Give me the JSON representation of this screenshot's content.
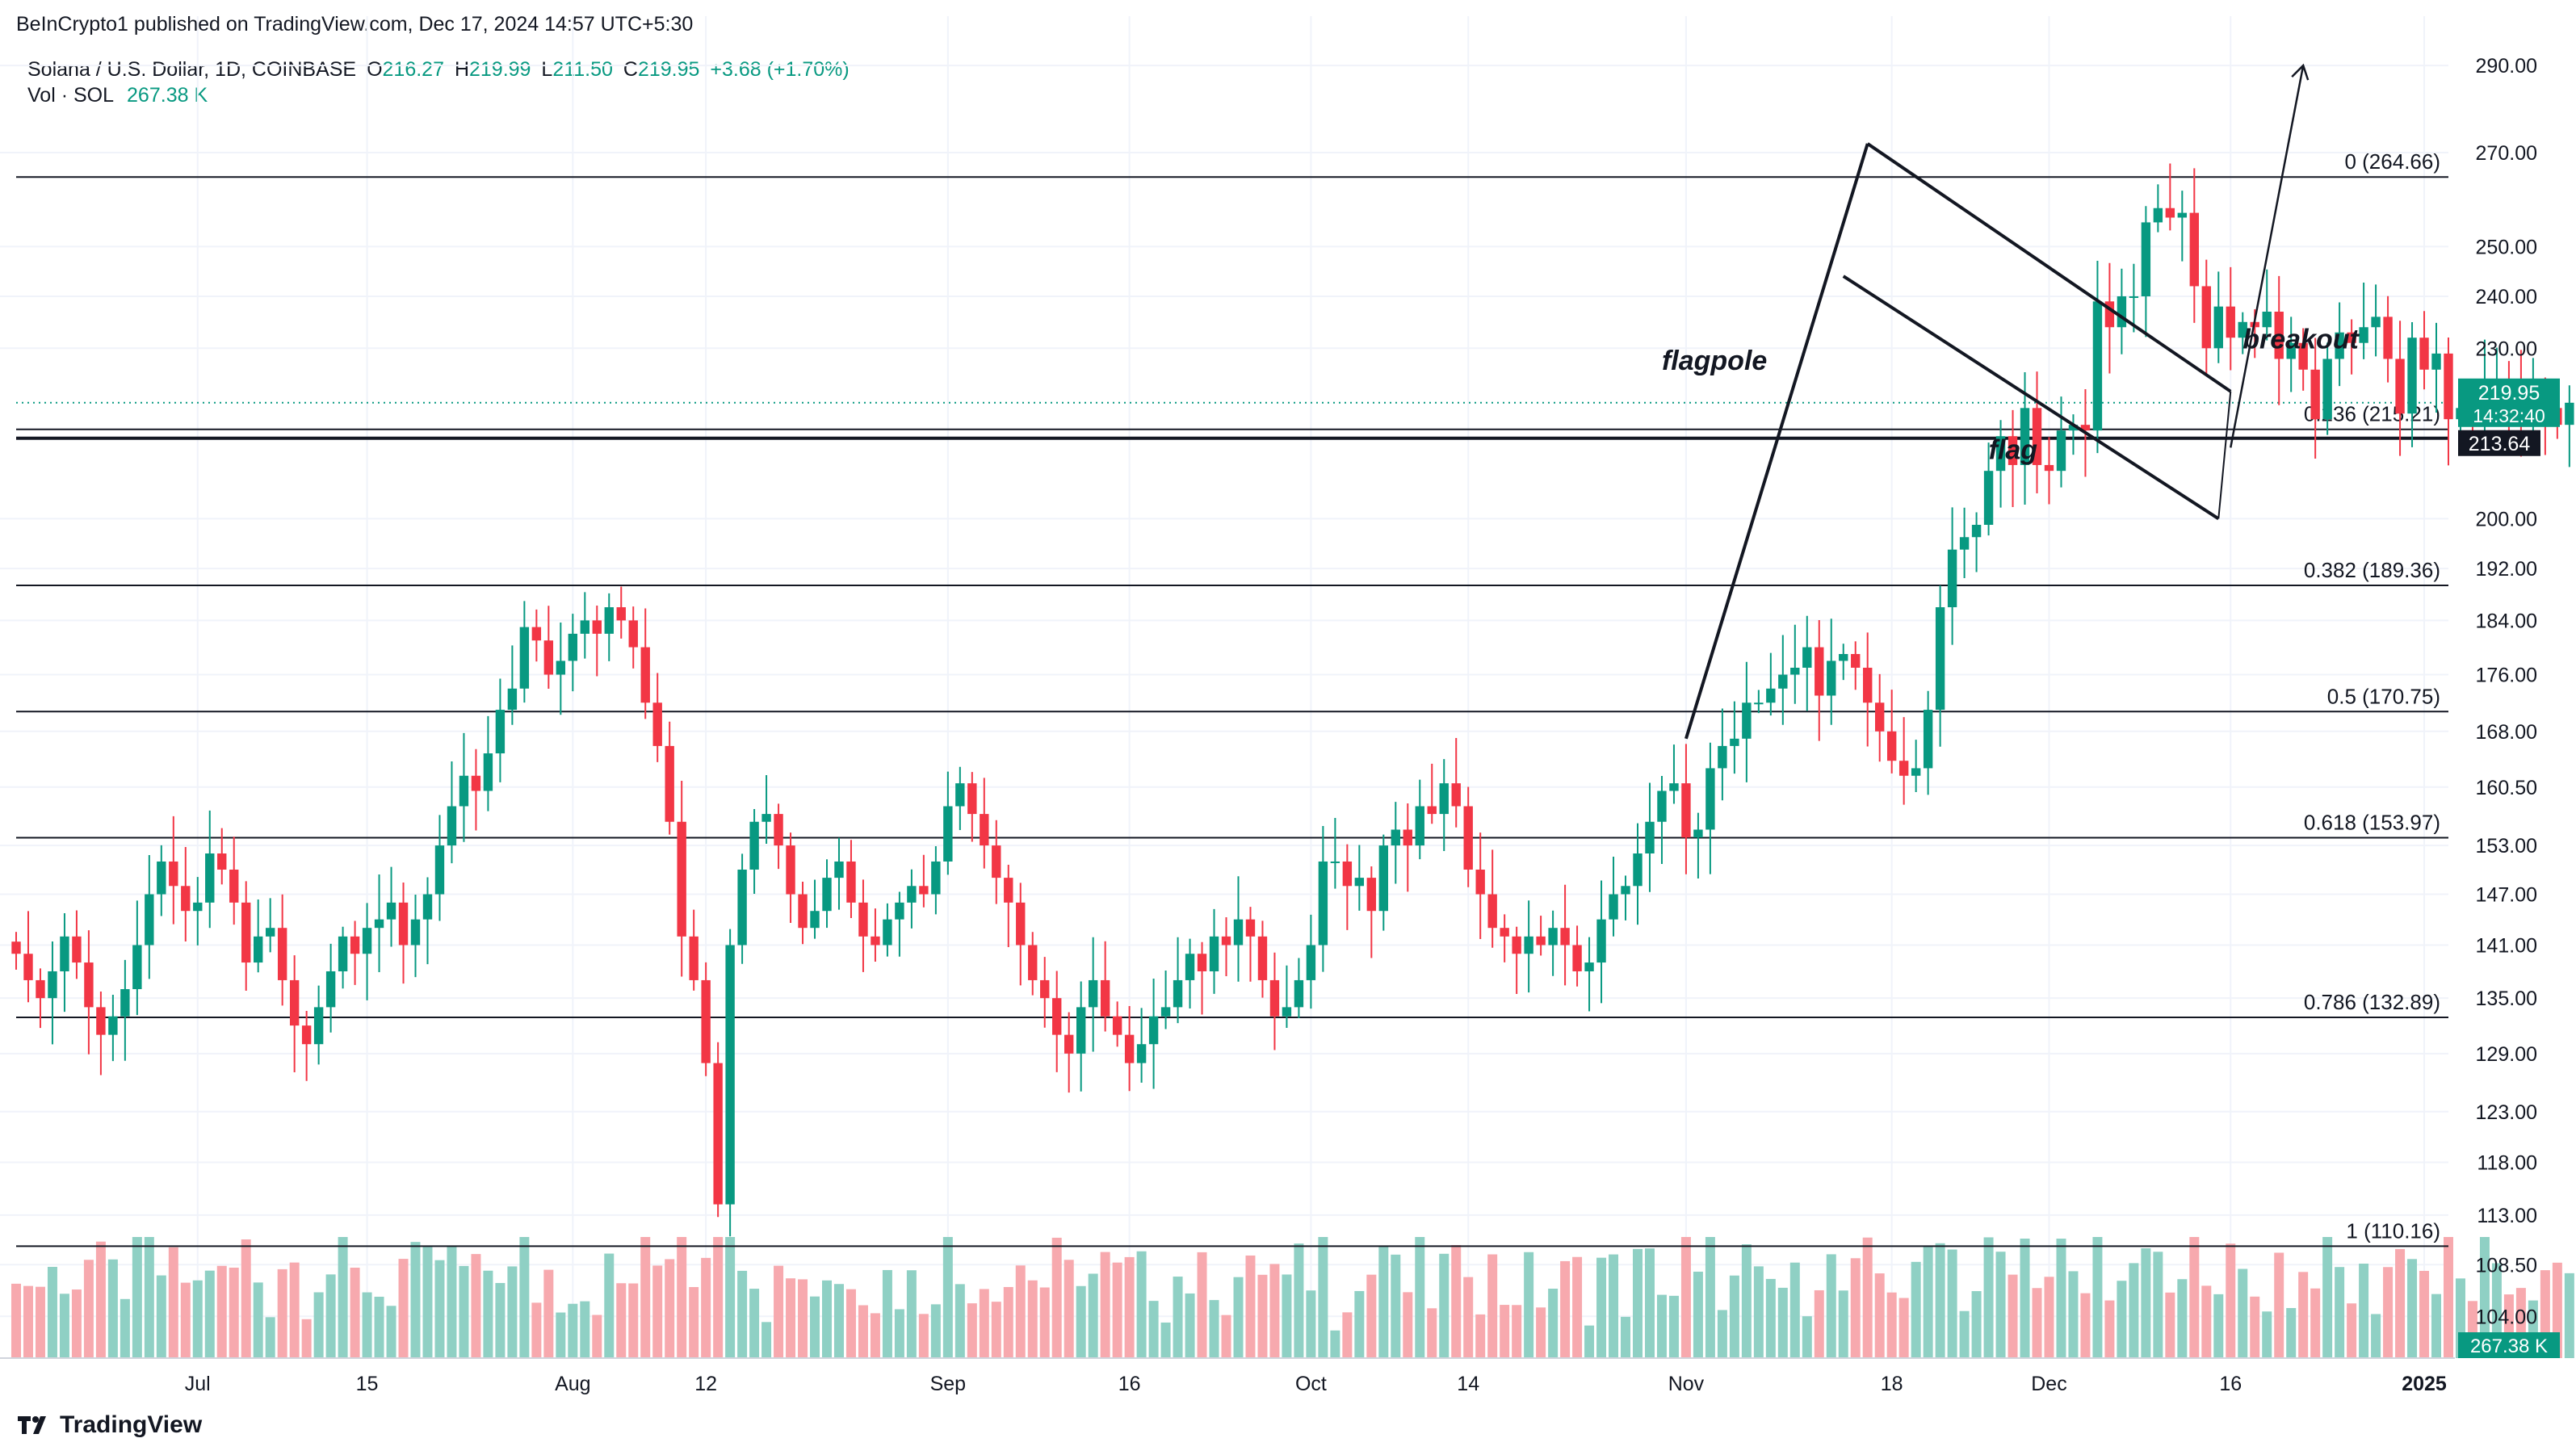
{
  "publish_line": "BeInCrypto1 published on TradingView.com, Dec 17, 2024 14:57 UTC+5:30",
  "legend": {
    "symbol": "Solana / U.S. Dollar, 1D, COINBASE",
    "o_label": "O",
    "o": "216.27",
    "h_label": "H",
    "h": "219.99",
    "l_label": "L",
    "l": "211.50",
    "c_label": "C",
    "c": "219.95",
    "change": "+3.68 (+1.70%)",
    "vol_label": "Vol · SOL",
    "vol": "267.38 K"
  },
  "brand": "TradingView",
  "colors": {
    "up": "#089981",
    "down": "#f23645",
    "up_vol": "#8fd0c4",
    "down_vol": "#f7a9ae",
    "grid": "#f0f3fa",
    "line": "#131722",
    "price_tag": "#089981"
  },
  "chart_data": {
    "type": "candlestick",
    "title": "Solana / U.S. Dollar, 1D, COINBASE",
    "y_scale": "log",
    "ylim": [
      100.5,
      298
    ],
    "y_ticks": [
      290.0,
      270.0,
      250.0,
      240.0,
      230.0,
      200.0,
      192.0,
      184.0,
      176.0,
      168.0,
      160.5,
      153.0,
      147.0,
      141.0,
      135.0,
      129.0,
      123.0,
      118.0,
      113.0,
      108.5,
      104.0
    ],
    "y_tick_labels": [
      "290.00",
      "270.00",
      "250.00",
      "240.00",
      "230.00",
      "200.00",
      "192.00",
      "184.00",
      "176.00",
      "168.00",
      "160.50",
      "153.00",
      "147.00",
      "141.00",
      "135.00",
      "129.00",
      "123.00",
      "118.00",
      "113.00",
      "108.50",
      "104.00"
    ],
    "x_range": [
      "2024-06-16",
      "2025-01-03"
    ],
    "x_ticks": [
      {
        "date": "2024-07-01",
        "label": "Jul"
      },
      {
        "date": "2024-07-15",
        "label": "15"
      },
      {
        "date": "2024-08-01",
        "label": "Aug"
      },
      {
        "date": "2024-08-12",
        "label": "12"
      },
      {
        "date": "2024-09-01",
        "label": "Sep"
      },
      {
        "date": "2024-09-16",
        "label": "16"
      },
      {
        "date": "2024-10-01",
        "label": "Oct"
      },
      {
        "date": "2024-10-14",
        "label": "14"
      },
      {
        "date": "2024-11-01",
        "label": "Nov"
      },
      {
        "date": "2024-11-18",
        "label": "18"
      },
      {
        "date": "2024-12-01",
        "label": "Dec"
      },
      {
        "date": "2024-12-16",
        "label": "16"
      },
      {
        "date": "2025-01-01",
        "label": "2025"
      }
    ],
    "first_date": "2024-06-16",
    "close": [
      140,
      137,
      135,
      138,
      142,
      139,
      134,
      131,
      133,
      136,
      141,
      147,
      151,
      148,
      145,
      146,
      152,
      150,
      146,
      139,
      142,
      143,
      137,
      132,
      130,
      134,
      138,
      142,
      140,
      143,
      144,
      146,
      141,
      144,
      147,
      153,
      158,
      162,
      160,
      165,
      171,
      174,
      183,
      181,
      176,
      178,
      182,
      184,
      182,
      186,
      184,
      180,
      172,
      166,
      156,
      142,
      137,
      128,
      114,
      141,
      150,
      156,
      157,
      153,
      147,
      143,
      145,
      149,
      151,
      146,
      142,
      141,
      144,
      146,
      148,
      147,
      151,
      158,
      161,
      157,
      153,
      149,
      146,
      141,
      137,
      135,
      131,
      129,
      134,
      137,
      133,
      131,
      128,
      130,
      133,
      134,
      137,
      140,
      138,
      142,
      141,
      144,
      142,
      137,
      133,
      134,
      137,
      141,
      151,
      151,
      148,
      149,
      145,
      153,
      155,
      153,
      158,
      157,
      161,
      158,
      150,
      147,
      143,
      142,
      140,
      142,
      141,
      143,
      141,
      138,
      139,
      144,
      147,
      148,
      152,
      156,
      160,
      161,
      154,
      155,
      163,
      166,
      167,
      172,
      172,
      174,
      176,
      177,
      180,
      173,
      178,
      179,
      177,
      172,
      168,
      164,
      162,
      163,
      171,
      186,
      195,
      197,
      199,
      208,
      214,
      209,
      219,
      209,
      208,
      215,
      216,
      215,
      239,
      234,
      240,
      240,
      255,
      258,
      256,
      257,
      242,
      230,
      238,
      232,
      235,
      234,
      237,
      228,
      231,
      226,
      217,
      228,
      233,
      231,
      234,
      236,
      228,
      218,
      232,
      226,
      229,
      217,
      219,
      216,
      224,
      224,
      222,
      216,
      220,
      219,
      216,
      219.95
    ],
    "volume_scale": "relative",
    "annotations": [
      "flagpole",
      "flag",
      "breakout"
    ],
    "fib_levels": [
      {
        "label": "0 (264.66)",
        "value": 264.66
      },
      {
        "label": "0.236 (215.21)",
        "value": 215.21
      },
      {
        "label": "0.382 (189.36)",
        "value": 189.36
      },
      {
        "label": "0.5 (170.75)",
        "value": 170.75
      },
      {
        "label": "0.618 (153.97)",
        "value": 153.97
      },
      {
        "label": "0.786 (132.89)",
        "value": 132.89
      },
      {
        "label": "1 (110.16)",
        "value": 110.16
      }
    ],
    "support_level": 213.64,
    "last_price": 219.95,
    "price_tag": {
      "price": "219.95",
      "countdown": "14:32:40"
    },
    "support_tag": "213.64",
    "volume_tag": "267.38 K"
  }
}
